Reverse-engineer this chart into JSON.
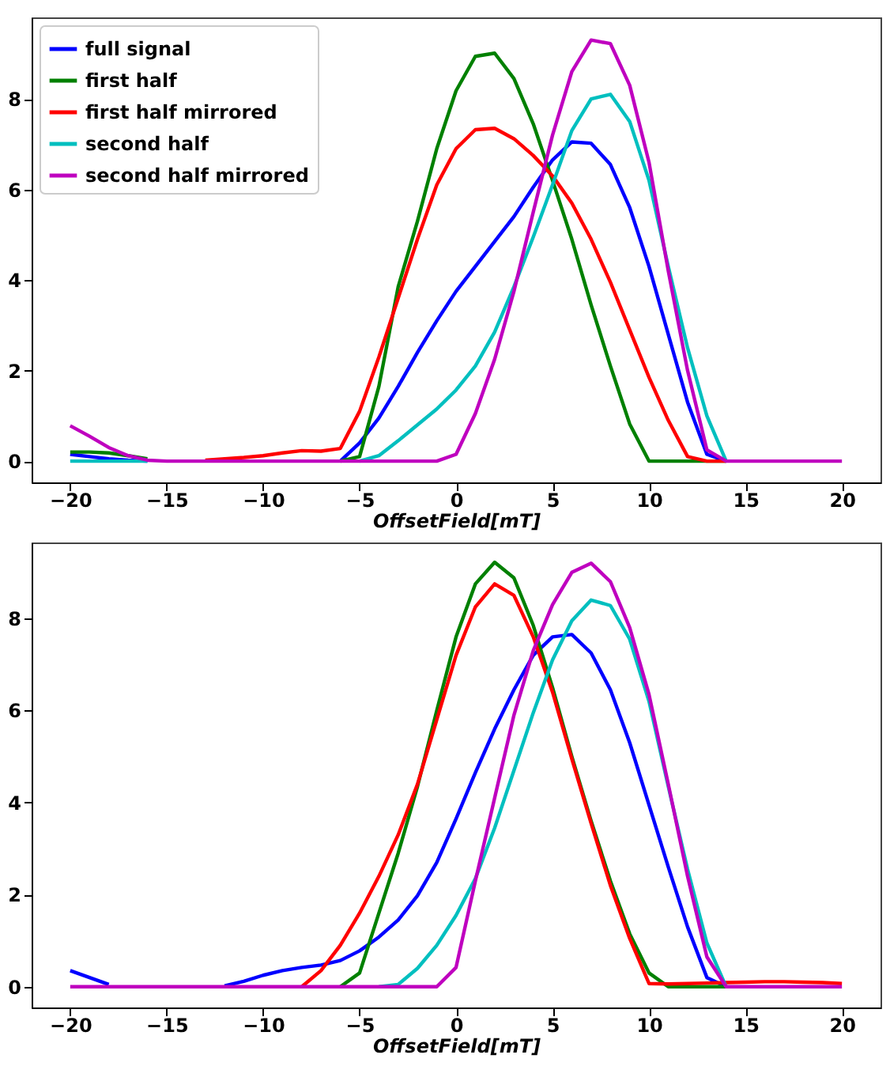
{
  "chart_data": [
    {
      "type": "line",
      "xlabel": "OffsetField[mT]",
      "x": [
        -20,
        -19,
        -18,
        -17,
        -16,
        -15,
        -14,
        -13,
        -12,
        -11,
        -10,
        -9,
        -8,
        -7,
        -6,
        -5,
        -4,
        -3,
        -2,
        -1,
        0,
        1,
        2,
        3,
        4,
        5,
        6,
        7,
        8,
        9,
        10,
        11,
        12,
        13,
        14,
        15,
        16,
        17,
        18,
        19,
        20
      ],
      "series": [
        {
          "name": "full signal",
          "color": "#0000ff",
          "values": [
            0.15,
            0.1,
            0.05,
            0.02,
            0,
            null,
            null,
            null,
            null,
            null,
            null,
            null,
            null,
            null,
            0,
            0.4,
            0.95,
            1.65,
            2.4,
            3.1,
            3.75,
            4.3,
            4.85,
            5.4,
            6.05,
            6.65,
            7.05,
            7.02,
            6.55,
            5.6,
            4.3,
            2.8,
            1.3,
            0.15,
            0,
            null,
            null,
            null,
            null,
            null,
            null
          ]
        },
        {
          "name": "first half",
          "color": "#008000",
          "values": [
            0.2,
            0.2,
            0.18,
            0.12,
            0.05,
            null,
            null,
            null,
            null,
            null,
            null,
            null,
            null,
            null,
            0,
            0.1,
            1.65,
            3.85,
            5.3,
            6.9,
            8.18,
            8.94,
            9.01,
            8.45,
            7.45,
            6.2,
            4.9,
            3.45,
            2.1,
            0.82,
            0,
            0,
            0,
            0,
            0,
            null,
            null,
            null,
            null,
            null,
            null
          ]
        },
        {
          "name": "first half mirrored",
          "color": "#ff0000",
          "values": [
            null,
            null,
            null,
            null,
            null,
            null,
            null,
            0.02,
            0.05,
            0.08,
            0.12,
            0.18,
            0.23,
            0.22,
            0.28,
            1.1,
            2.3,
            3.6,
            4.9,
            6.1,
            6.9,
            7.32,
            7.35,
            7.12,
            6.75,
            6.3,
            5.7,
            4.9,
            3.95,
            2.9,
            1.85,
            0.9,
            0.1,
            0,
            0,
            null,
            null,
            null,
            null,
            null,
            null
          ]
        },
        {
          "name": "second half",
          "color": "#00bfbf",
          "values": [
            0,
            0,
            0,
            0,
            0,
            null,
            null,
            null,
            null,
            null,
            null,
            null,
            null,
            null,
            null,
            0,
            0.12,
            0.45,
            0.8,
            1.15,
            1.57,
            2.1,
            2.85,
            3.85,
            4.95,
            6.1,
            7.3,
            8.0,
            8.1,
            7.5,
            6.2,
            4.3,
            2.5,
            1.0,
            0,
            null,
            null,
            null,
            null,
            null,
            null
          ]
        },
        {
          "name": "second half mirrored",
          "color": "#bf00bf",
          "values": [
            0.78,
            0.55,
            0.3,
            0.12,
            0.02,
            0,
            0,
            0,
            0,
            0,
            0,
            0,
            0,
            0,
            0,
            0,
            0,
            0,
            0,
            0,
            0.15,
            1.05,
            2.25,
            3.75,
            5.5,
            7.2,
            8.6,
            9.3,
            9.22,
            8.3,
            6.6,
            4.2,
            2.0,
            0.25,
            0,
            0,
            0,
            0,
            0,
            0,
            0
          ]
        }
      ],
      "xlim": [
        -22,
        22
      ],
      "xticks": [
        -20,
        -15,
        -10,
        -5,
        0,
        5,
        10,
        15,
        20
      ],
      "ylim": [
        -0.47,
        9.8
      ],
      "yticks": [
        0,
        2,
        4,
        6,
        8
      ],
      "legend": "top left",
      "line_style": "solid"
    },
    {
      "type": "line",
      "xlabel": "OffsetField[mT]",
      "x": [
        -20,
        -19,
        -18,
        -17,
        -16,
        -15,
        -14,
        -13,
        -12,
        -11,
        -10,
        -9,
        -8,
        -7,
        -6,
        -5,
        -4,
        -3,
        -2,
        -1,
        0,
        1,
        2,
        3,
        4,
        5,
        6,
        7,
        8,
        9,
        10,
        11,
        12,
        13,
        14,
        15,
        16,
        17,
        18,
        19,
        20
      ],
      "series": [
        {
          "name": "full signal",
          "color": "#0000ff",
          "values": [
            0.35,
            0.2,
            0.05,
            null,
            null,
            null,
            null,
            null,
            0.02,
            0.12,
            0.25,
            0.35,
            0.42,
            0.47,
            0.57,
            0.78,
            1.08,
            1.45,
            1.98,
            2.7,
            3.65,
            4.65,
            5.6,
            6.45,
            7.2,
            7.6,
            7.65,
            7.25,
            6.45,
            5.3,
            3.95,
            2.6,
            1.3,
            0.2,
            0,
            null,
            null,
            null,
            null,
            null,
            null
          ]
        },
        {
          "name": "first half",
          "color": "#008000",
          "values": [
            null,
            null,
            null,
            null,
            null,
            null,
            null,
            null,
            null,
            null,
            null,
            null,
            null,
            null,
            0,
            0.3,
            1.6,
            2.9,
            4.35,
            6.0,
            7.6,
            8.75,
            9.22,
            8.88,
            7.85,
            6.5,
            5.0,
            3.6,
            2.3,
            1.15,
            0.3,
            0,
            0,
            0,
            0,
            null,
            null,
            null,
            null,
            null,
            null
          ]
        },
        {
          "name": "first half mirrored",
          "color": "#ff0000",
          "values": [
            null,
            null,
            null,
            null,
            null,
            null,
            null,
            null,
            null,
            null,
            null,
            null,
            0,
            0.35,
            0.9,
            1.6,
            2.4,
            3.3,
            4.4,
            5.8,
            7.2,
            8.25,
            8.75,
            8.5,
            7.6,
            6.4,
            4.95,
            3.55,
            2.2,
            1.05,
            0.07,
            0.06,
            0.07,
            0.08,
            0.09,
            0.1,
            0.11,
            0.11,
            0.1,
            0.09,
            0.07
          ]
        },
        {
          "name": "second half",
          "color": "#00bfbf",
          "values": [
            null,
            null,
            null,
            null,
            null,
            null,
            null,
            null,
            null,
            null,
            null,
            null,
            null,
            null,
            null,
            null,
            0,
            0.05,
            0.4,
            0.9,
            1.55,
            2.35,
            3.45,
            4.7,
            5.95,
            7.1,
            7.95,
            8.4,
            8.28,
            7.55,
            6.2,
            4.35,
            2.55,
            0.95,
            0,
            null,
            null,
            null,
            null,
            null,
            null
          ]
        },
        {
          "name": "second half mirrored",
          "color": "#bf00bf",
          "values": [
            0,
            0,
            0,
            0,
            0,
            0,
            0,
            0,
            0,
            0,
            0,
            0,
            0,
            0,
            0,
            0,
            0,
            0,
            0,
            0,
            0.42,
            2.3,
            4.1,
            5.9,
            7.3,
            8.3,
            9.0,
            9.2,
            8.8,
            7.8,
            6.35,
            4.4,
            2.4,
            0.65,
            0,
            0,
            0,
            0,
            0,
            0,
            0
          ]
        }
      ],
      "xlim": [
        -22,
        22
      ],
      "xticks": [
        -20,
        -15,
        -10,
        -5,
        0,
        5,
        10,
        15,
        20
      ],
      "ylim": [
        -0.45,
        9.65
      ],
      "yticks": [
        0,
        2,
        4,
        6,
        8
      ],
      "legend": "top left",
      "line_style": "solid"
    }
  ]
}
